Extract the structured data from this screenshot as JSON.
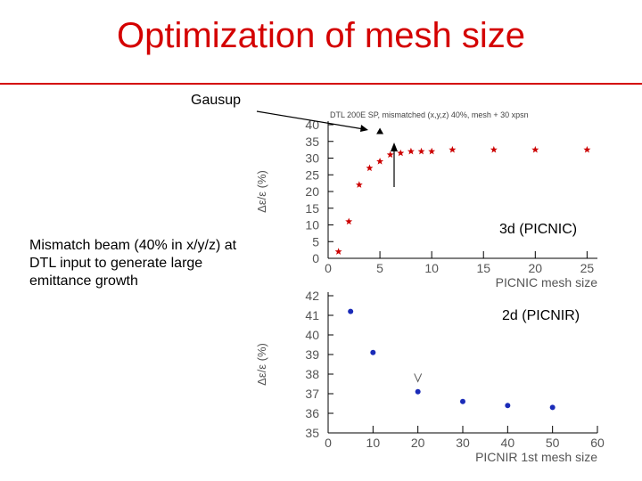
{
  "slide": {
    "title": "Optimization of mesh size",
    "gausup_label": "Gausup",
    "mismatch_note": "Mismatch beam (40% in x/y/z) at DTL input to generate large emittance growth",
    "label_3d": "3d (PICNIC)",
    "label_2d": "2d (PICNIR)"
  },
  "colors": {
    "title": "#d40000",
    "rule": "#d40000",
    "star": "#cc0000",
    "dot": "#1a2bb8"
  },
  "chart_data": [
    {
      "type": "scatter",
      "title": "DTL 200E SP, mismatched (x,y,z) 40%, mesh + 30 xpsn",
      "xlabel": "PICNIC mesh size",
      "ylabel": "Δε/ε (%)",
      "xlim": [
        0,
        26
      ],
      "ylim": [
        0,
        40
      ],
      "xticks": [
        0,
        5,
        10,
        15,
        20,
        25
      ],
      "yticks": [
        0,
        5,
        10,
        15,
        20,
        25,
        30,
        35,
        40
      ],
      "marker": "star",
      "x": [
        1,
        2,
        3,
        4,
        5,
        6,
        7,
        8,
        9,
        10,
        12,
        16,
        20,
        25
      ],
      "y": [
        2,
        11,
        22,
        27,
        29,
        31,
        31.5,
        32,
        32,
        32,
        32.5,
        32.5,
        32.5,
        32.5
      ],
      "reference_marker": {
        "x": 5,
        "y": 38,
        "shape": "triangle"
      }
    },
    {
      "type": "scatter",
      "title": "",
      "xlabel": "PICNIR 1st mesh size",
      "ylabel": "Δε/ε (%)",
      "xlim": [
        0,
        60
      ],
      "ylim": [
        35,
        42
      ],
      "xticks": [
        0,
        10,
        20,
        30,
        40,
        50,
        60
      ],
      "yticks": [
        35,
        36,
        37,
        38,
        39,
        40,
        41,
        42
      ],
      "marker": "dot",
      "x": [
        5,
        10,
        20,
        30,
        40,
        50
      ],
      "y": [
        41.2,
        39.1,
        37.1,
        36.6,
        36.4,
        36.3
      ],
      "reference_marker": {
        "x": 20,
        "y": 37.8,
        "shape": "v"
      }
    }
  ]
}
